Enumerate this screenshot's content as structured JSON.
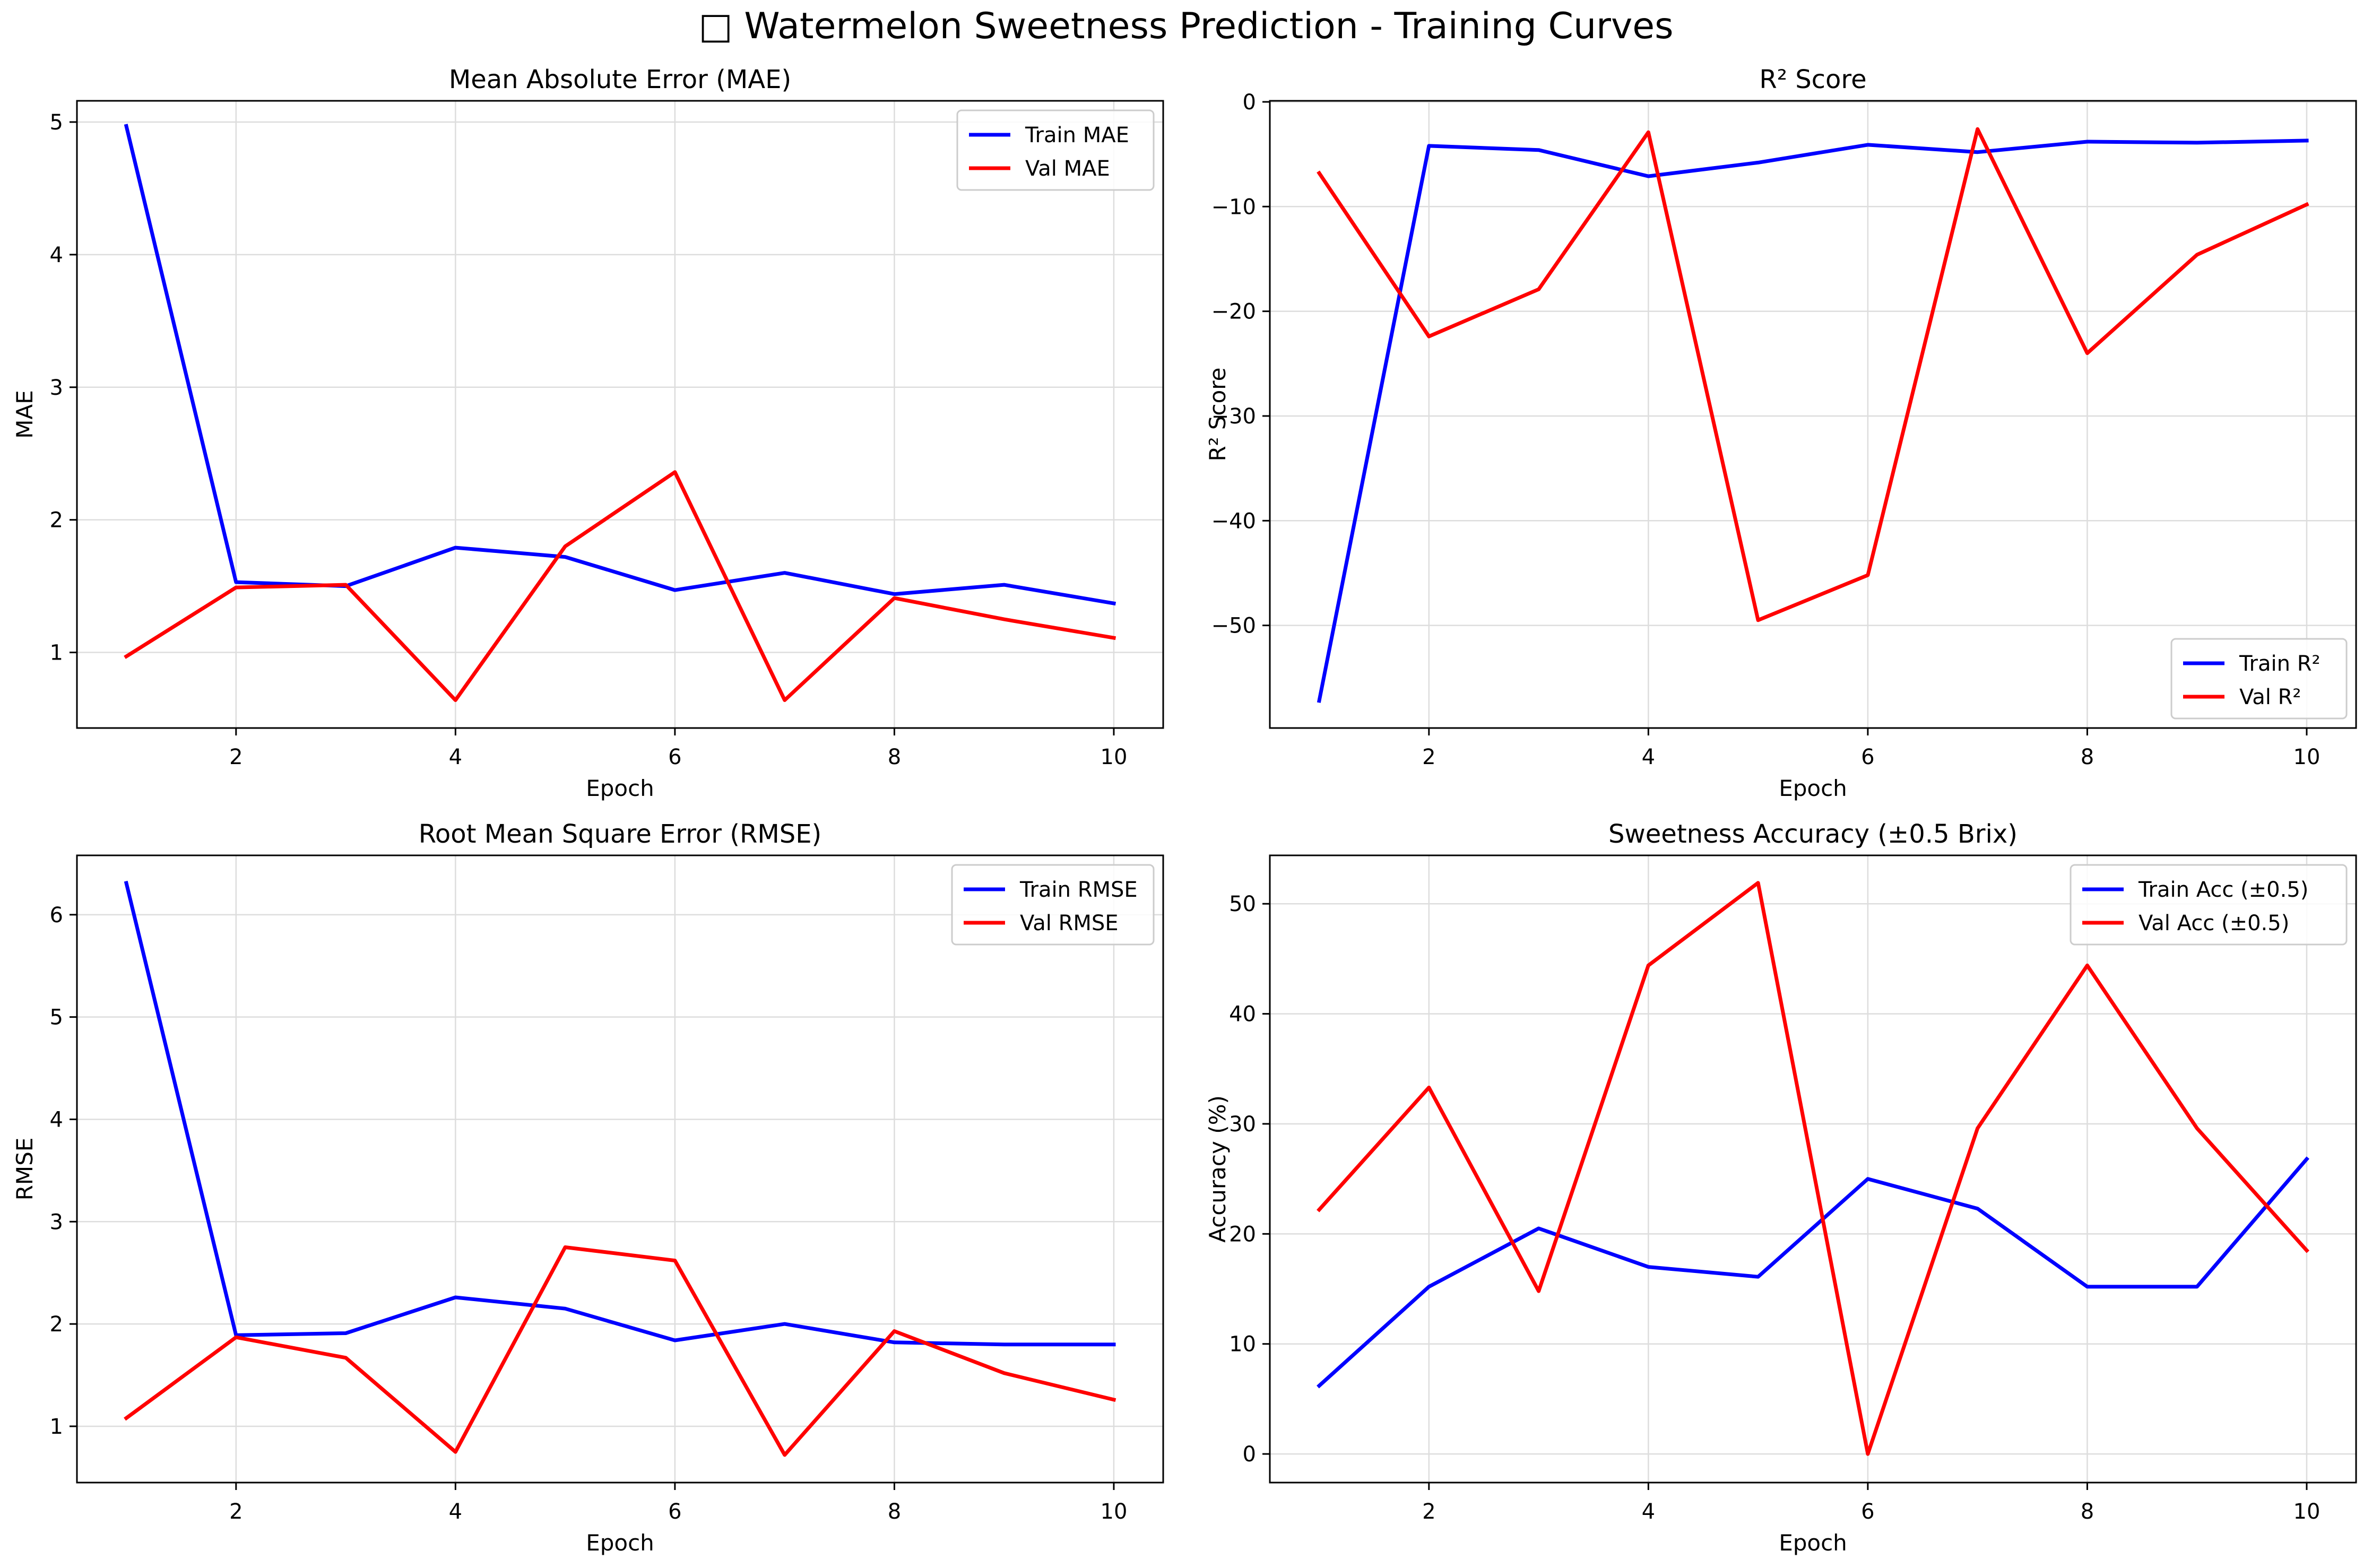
{
  "figure": {
    "title": "□ Watermelon Sweetness Prediction - Training Curves",
    "colors": {
      "train": "#0000ff",
      "val": "#ff0000",
      "grid": "#dddddd",
      "axis": "#000000"
    }
  },
  "chart_data": [
    {
      "type": "line",
      "title": "Mean Absolute Error (MAE)",
      "xlabel": "Epoch",
      "ylabel": "MAE",
      "x": [
        1,
        2,
        3,
        4,
        5,
        6,
        7,
        8,
        9,
        10
      ],
      "xlim": [
        0.55,
        10.45
      ],
      "ylim": [
        0.43,
        5.16
      ],
      "xticks": [
        2,
        4,
        6,
        8,
        10
      ],
      "yticks": [
        1,
        2,
        3,
        4,
        5
      ],
      "grid": true,
      "legend": "top-right",
      "series": [
        {
          "name": "Train MAE",
          "color": "#0000ff",
          "values": [
            4.97,
            1.53,
            1.5,
            1.79,
            1.72,
            1.47,
            1.6,
            1.44,
            1.51,
            1.37
          ]
        },
        {
          "name": "Val MAE",
          "color": "#ff0000",
          "values": [
            0.97,
            1.49,
            1.51,
            0.64,
            1.8,
            2.36,
            0.64,
            1.41,
            1.25,
            1.11
          ]
        }
      ]
    },
    {
      "type": "line",
      "title": "R² Score",
      "xlabel": "Epoch",
      "ylabel": "R² Score",
      "x": [
        1,
        2,
        3,
        4,
        5,
        6,
        7,
        8,
        9,
        10
      ],
      "xlim": [
        0.55,
        10.45
      ],
      "ylim": [
        -59.8,
        0.1
      ],
      "xticks": [
        2,
        4,
        6,
        8,
        10
      ],
      "yticks": [
        0,
        -10,
        -20,
        -30,
        -40,
        -50
      ],
      "grid": true,
      "legend": "bottom-right",
      "series": [
        {
          "name": "Train R²",
          "color": "#0000ff",
          "values": [
            -57.2,
            -4.2,
            -4.6,
            -7.1,
            -5.8,
            -4.1,
            -4.8,
            -3.8,
            -3.9,
            -3.7
          ]
        },
        {
          "name": "Val R²",
          "color": "#ff0000",
          "values": [
            -6.8,
            -22.4,
            -17.9,
            -2.9,
            -49.5,
            -45.2,
            -2.6,
            -24.0,
            -14.6,
            -9.8
          ]
        }
      ]
    },
    {
      "type": "line",
      "title": "Root Mean Square Error (RMSE)",
      "xlabel": "Epoch",
      "ylabel": "RMSE",
      "x": [
        1,
        2,
        3,
        4,
        5,
        6,
        7,
        8,
        9,
        10
      ],
      "xlim": [
        0.55,
        10.45
      ],
      "ylim": [
        0.45,
        6.58
      ],
      "xticks": [
        2,
        4,
        6,
        8,
        10
      ],
      "yticks": [
        1,
        2,
        3,
        4,
        5,
        6
      ],
      "grid": true,
      "legend": "top-right",
      "series": [
        {
          "name": "Train RMSE",
          "color": "#0000ff",
          "values": [
            6.31,
            1.89,
            1.91,
            2.26,
            2.15,
            1.84,
            2.0,
            1.82,
            1.8,
            1.8
          ]
        },
        {
          "name": "Val RMSE",
          "color": "#ff0000",
          "values": [
            1.08,
            1.87,
            1.67,
            0.75,
            2.75,
            2.62,
            0.72,
            1.93,
            1.52,
            1.26
          ]
        }
      ]
    },
    {
      "type": "line",
      "title": "Sweetness Accuracy (±0.5 Brix)",
      "xlabel": "Epoch",
      "ylabel": "Accuracy (%)",
      "x": [
        1,
        2,
        3,
        4,
        5,
        6,
        7,
        8,
        9,
        10
      ],
      "xlim": [
        0.55,
        10.45
      ],
      "ylim": [
        -2.6,
        54.4
      ],
      "xticks": [
        2,
        4,
        6,
        8,
        10
      ],
      "yticks": [
        0,
        10,
        20,
        30,
        40,
        50
      ],
      "grid": true,
      "legend": "top-right",
      "series": [
        {
          "name": "Train Acc (±0.5)",
          "color": "#0000ff",
          "values": [
            6.2,
            15.2,
            20.5,
            17.0,
            16.1,
            25.0,
            22.3,
            15.2,
            15.2,
            26.8
          ]
        },
        {
          "name": "Val Acc (±0.5)",
          "color": "#ff0000",
          "values": [
            22.2,
            33.3,
            14.8,
            44.4,
            51.9,
            0.0,
            29.6,
            44.4,
            29.6,
            18.5
          ]
        }
      ]
    }
  ]
}
